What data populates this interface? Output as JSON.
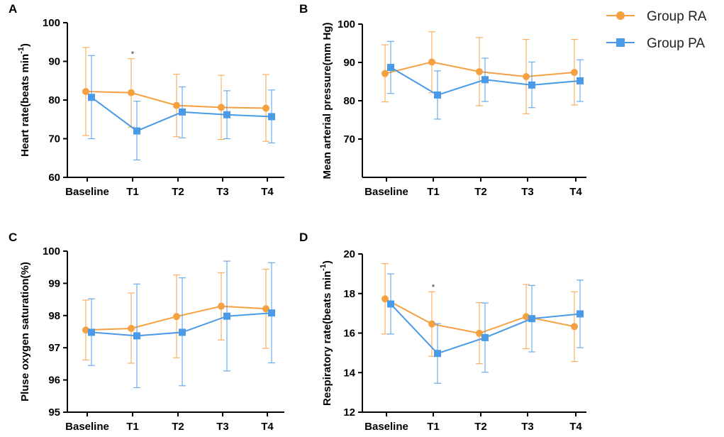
{
  "colors": {
    "group_ra": "#F5A142",
    "group_pa": "#4A9AE8",
    "axis": "#000000"
  },
  "legend": [
    {
      "label": "Group RA",
      "marker": "circle",
      "color": "#F5A142"
    },
    {
      "label": "Group PA",
      "marker": "square",
      "color": "#4A9AE8"
    }
  ],
  "chart_data": [
    {
      "panel": "A",
      "type": "line",
      "ylabel": "Heart rate(beats min",
      "ylabel_sup": "-1",
      "ylabel_close": ")",
      "categories": [
        "Baseline",
        "T1",
        "T2",
        "T3",
        "T4"
      ],
      "ylim": [
        60,
        100
      ],
      "yticks": [
        60,
        70,
        80,
        90,
        100
      ],
      "annotations": [
        {
          "category": "T1",
          "text": "*"
        }
      ],
      "series": [
        {
          "name": "Group RA",
          "values": [
            82.2,
            81.9,
            78.6,
            78.1,
            77.9
          ],
          "error_low": [
            70.8,
            73.0,
            70.5,
            69.8,
            69.3
          ],
          "error_high": [
            93.6,
            90.7,
            86.7,
            86.4,
            86.6
          ]
        },
        {
          "name": "Group PA",
          "values": [
            80.7,
            72.0,
            76.9,
            76.2,
            75.7
          ],
          "error_low": [
            70.0,
            64.5,
            70.2,
            70.0,
            68.9
          ],
          "error_high": [
            91.5,
            79.7,
            83.4,
            82.4,
            82.6
          ]
        }
      ]
    },
    {
      "panel": "B",
      "type": "line",
      "ylabel": "Mean arterial pressure(mm Hg)",
      "categories": [
        "Baseline",
        "T1",
        "T2",
        "T3",
        "T4"
      ],
      "ylim": [
        60,
        100
      ],
      "yticks": [
        70,
        80,
        90,
        100
      ],
      "annotations": [],
      "series": [
        {
          "name": "Group RA",
          "values": [
            87.1,
            90.1,
            87.6,
            86.3,
            87.4
          ],
          "error_low": [
            79.7,
            82.1,
            78.7,
            76.6,
            78.9
          ],
          "error_high": [
            94.6,
            98.0,
            96.5,
            96.0,
            96.0
          ]
        },
        {
          "name": "Group PA",
          "values": [
            88.7,
            81.5,
            85.5,
            84.1,
            85.2
          ],
          "error_low": [
            81.9,
            75.2,
            79.8,
            78.2,
            79.8
          ],
          "error_high": [
            95.5,
            87.8,
            91.1,
            90.1,
            90.7
          ]
        }
      ]
    },
    {
      "panel": "C",
      "type": "line",
      "ylabel": "Pluse oxygen saturation(%)",
      "categories": [
        "Baseline",
        "T1",
        "T2",
        "T3",
        "T4"
      ],
      "ylim": [
        95,
        100
      ],
      "yticks": [
        95,
        96,
        97,
        98,
        99,
        100
      ],
      "annotations": [],
      "series": [
        {
          "name": "Group RA",
          "values": [
            97.55,
            97.6,
            97.97,
            98.29,
            98.21
          ],
          "error_low": [
            96.62,
            96.52,
            96.69,
            97.24,
            96.98
          ],
          "error_high": [
            98.48,
            98.7,
            99.26,
            99.33,
            99.44
          ]
        },
        {
          "name": "Group PA",
          "values": [
            97.48,
            97.37,
            97.48,
            97.98,
            98.08
          ],
          "error_low": [
            96.45,
            95.76,
            95.82,
            96.28,
            96.53
          ],
          "error_high": [
            98.52,
            98.98,
            99.17,
            99.69,
            99.64
          ]
        }
      ]
    },
    {
      "panel": "D",
      "type": "line",
      "ylabel": "Respiratory rate(beats min",
      "ylabel_sup": "-1",
      "ylabel_close": ")",
      "categories": [
        "Baseline",
        "T1",
        "T2",
        "T3",
        "T4"
      ],
      "ylim": [
        12,
        20
      ],
      "yticks": [
        12,
        14,
        16,
        18,
        20
      ],
      "annotations": [
        {
          "category": "T1",
          "text": "*"
        }
      ],
      "series": [
        {
          "name": "Group RA",
          "values": [
            17.73,
            16.46,
            15.99,
            16.83,
            16.33
          ],
          "error_low": [
            15.95,
            14.83,
            14.45,
            15.21,
            14.56
          ],
          "error_high": [
            19.51,
            18.09,
            17.54,
            18.46,
            18.09
          ]
        },
        {
          "name": "Group PA",
          "values": [
            17.47,
            14.97,
            15.77,
            16.73,
            16.97
          ],
          "error_low": [
            15.95,
            13.46,
            14.02,
            15.05,
            15.26
          ],
          "error_high": [
            18.99,
            16.48,
            17.52,
            18.41,
            18.68
          ]
        }
      ]
    }
  ]
}
